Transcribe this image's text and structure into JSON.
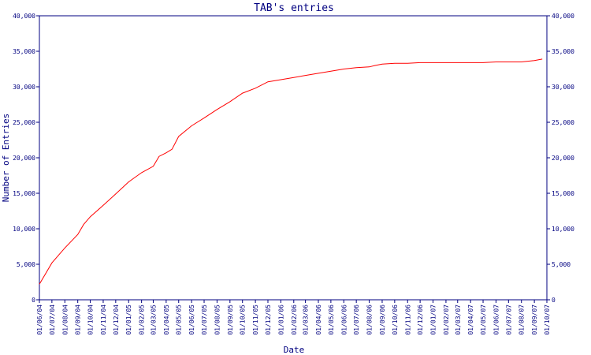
{
  "chart_data": {
    "type": "line",
    "title": "TAB's entries",
    "xlabel": "Date",
    "ylabel": "Number of Entries",
    "ylim": [
      0,
      40000
    ],
    "yticks": [
      "0",
      "5,000",
      "10,000",
      "15,000",
      "20,000",
      "25,000",
      "30,000",
      "35,000",
      "40,000"
    ],
    "ytick_values": [
      0,
      5000,
      10000,
      15000,
      20000,
      25000,
      30000,
      35000,
      40000
    ],
    "xticks": [
      "01/06/04",
      "01/07/04",
      "01/08/04",
      "01/09/04",
      "01/10/04",
      "01/11/04",
      "01/12/04",
      "01/01/05",
      "01/02/05",
      "01/03/05",
      "01/04/05",
      "01/05/05",
      "01/06/05",
      "01/07/05",
      "01/08/05",
      "01/09/05",
      "01/10/05",
      "01/11/05",
      "01/12/05",
      "01/01/06",
      "01/02/06",
      "01/03/06",
      "01/04/06",
      "01/05/06",
      "01/06/06",
      "01/07/06",
      "01/08/06",
      "01/09/06",
      "01/10/06",
      "01/11/06",
      "01/12/06",
      "01/01/07",
      "01/02/07",
      "01/03/07",
      "01/04/07",
      "01/05/07",
      "01/06/07",
      "01/07/07",
      "01/08/07",
      "01/09/07",
      "01/10/07"
    ],
    "grid": false,
    "series": [
      {
        "color": "#ff0000",
        "x": [
          "01/06/04",
          "01/07/04",
          "01/08/04",
          "01/09/04",
          "15/09/04",
          "01/10/04",
          "01/11/04",
          "01/12/04",
          "01/01/05",
          "01/02/05",
          "01/03/05",
          "15/03/05",
          "01/04/05",
          "15/04/05",
          "01/05/05",
          "01/06/05",
          "01/07/05",
          "01/08/05",
          "01/09/05",
          "01/10/05",
          "01/11/05",
          "01/12/05",
          "01/01/06",
          "01/02/06",
          "01/03/06",
          "01/04/06",
          "01/05/06",
          "01/06/06",
          "01/07/06",
          "01/08/06",
          "15/08/06",
          "01/09/06",
          "01/10/06",
          "01/11/06",
          "01/12/06",
          "01/01/07",
          "01/02/07",
          "01/03/07",
          "01/04/07",
          "01/05/07",
          "01/06/07",
          "01/07/07",
          "01/08/07",
          "01/09/07",
          "20/09/07"
        ],
        "y": [
          2200,
          5200,
          7300,
          9200,
          10600,
          11700,
          13300,
          14900,
          16600,
          17900,
          18800,
          20200,
          20700,
          21200,
          23000,
          24500,
          25600,
          26800,
          27900,
          29100,
          29800,
          30700,
          31000,
          31300,
          31600,
          31900,
          32200,
          32500,
          32700,
          32800,
          33000,
          33200,
          33300,
          33300,
          33400,
          33400,
          33400,
          33400,
          33400,
          33400,
          33500,
          33500,
          33500,
          33700,
          33900
        ]
      }
    ]
  }
}
